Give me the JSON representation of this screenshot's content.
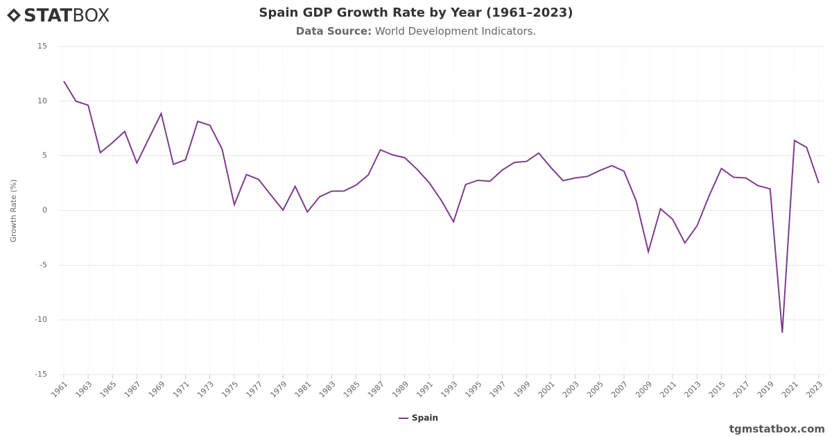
{
  "header": {
    "logo_bold": "STAT",
    "logo_light": "BOX"
  },
  "footer": "tgmstatbox.com",
  "chart_data": {
    "type": "line",
    "title": "Spain GDP Growth Rate by Year (1961–2023)",
    "subtitle_label": "Data Source:",
    "subtitle": "World Development Indicators.",
    "y_label": "Growth Rate (%)",
    "x": [
      1961,
      1962,
      1963,
      1964,
      1965,
      1966,
      1967,
      1968,
      1969,
      1970,
      1971,
      1972,
      1973,
      1974,
      1975,
      1976,
      1977,
      1978,
      1979,
      1980,
      1981,
      1982,
      1983,
      1984,
      1985,
      1986,
      1987,
      1988,
      1989,
      1990,
      1991,
      1992,
      1993,
      1994,
      1995,
      1996,
      1997,
      1998,
      1999,
      2000,
      2001,
      2002,
      2003,
      2004,
      2005,
      2006,
      2007,
      2008,
      2009,
      2010,
      2011,
      2012,
      2013,
      2014,
      2015,
      2016,
      2017,
      2018,
      2019,
      2020,
      2021,
      2022,
      2023
    ],
    "series": [
      {
        "name": "Spain",
        "color": "#7d3c8c",
        "values": [
          11.83,
          9.99,
          9.63,
          5.29,
          6.21,
          7.23,
          4.35,
          6.62,
          8.87,
          4.22,
          4.64,
          8.15,
          7.79,
          5.62,
          0.54,
          3.29,
          2.84,
          1.43,
          0.04,
          2.21,
          -0.13,
          1.25,
          1.77,
          1.78,
          2.32,
          3.25,
          5.55,
          5.09,
          4.83,
          3.78,
          2.55,
          0.93,
          -1.03,
          2.38,
          2.76,
          2.68,
          3.7,
          4.39,
          4.49,
          5.25,
          3.93,
          2.73,
          2.98,
          3.12,
          3.65,
          4.1,
          3.6,
          0.89,
          -3.76,
          0.16,
          -0.81,
          -2.96,
          -1.4,
          1.37,
          3.84,
          3.04,
          2.98,
          2.28,
          1.98,
          -11.17,
          6.4,
          5.77,
          2.5
        ]
      }
    ],
    "xlim": [
      1961,
      2023
    ],
    "xticks": [
      1961,
      1963,
      1965,
      1967,
      1969,
      1971,
      1973,
      1975,
      1977,
      1979,
      1981,
      1983,
      1985,
      1987,
      1989,
      1991,
      1993,
      1995,
      1997,
      1999,
      2001,
      2003,
      2005,
      2007,
      2009,
      2011,
      2013,
      2015,
      2017,
      2019,
      2021,
      2023
    ],
    "ylim": [
      -15,
      15
    ],
    "yticks": [
      -15,
      -10,
      -5,
      0,
      5,
      10,
      15
    ],
    "grid": true
  }
}
